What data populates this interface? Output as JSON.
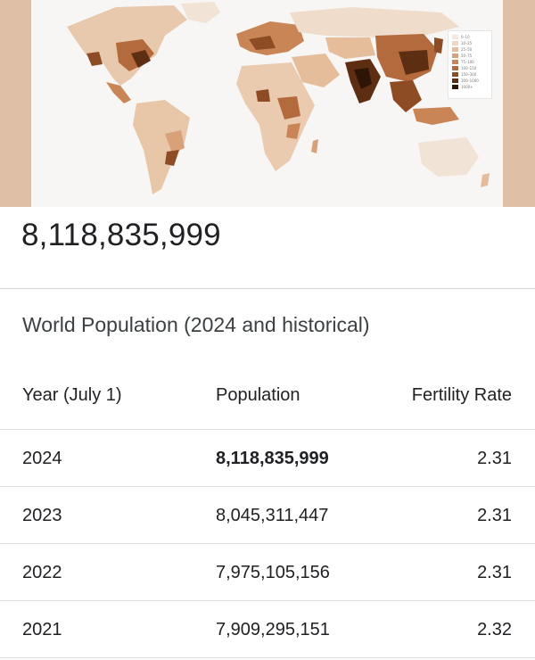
{
  "map": {
    "legend": [
      "0–10",
      "10–25",
      "25–50",
      "50–75",
      "75–100",
      "100–150",
      "150–300",
      "300–1000",
      "1000+"
    ],
    "legend_colors": [
      "#f6e8dc",
      "#f0d6c0",
      "#e6bd9b",
      "#d9a178",
      "#c98556",
      "#b36a3d",
      "#8e4c25",
      "#5e2e12",
      "#2f1506"
    ]
  },
  "headline_value": "8,118,835,999",
  "table": {
    "title": "World Population (2024 and historical)",
    "headers": {
      "year": "Year (July 1)",
      "population": "Population",
      "fertility": "Fertility Rate"
    },
    "rows": [
      {
        "year": "2024",
        "population": "8,118,835,999",
        "fertility": "2.31"
      },
      {
        "year": "2023",
        "population": "8,045,311,447",
        "fertility": "2.31"
      },
      {
        "year": "2022",
        "population": "7,975,105,156",
        "fertility": "2.31"
      },
      {
        "year": "2021",
        "population": "7,909,295,151",
        "fertility": "2.32"
      }
    ]
  }
}
